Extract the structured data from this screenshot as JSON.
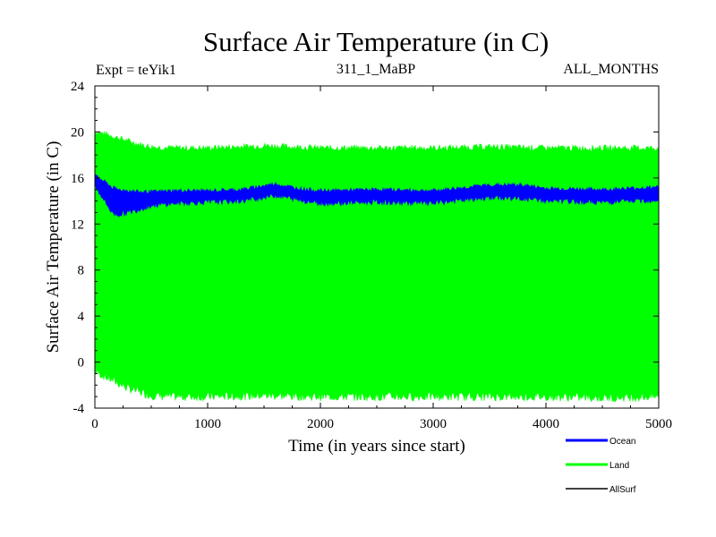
{
  "chart_data": {
    "type": "area",
    "title": "Surface Air Temperature (in C)",
    "subtitle_left": "Expt = teYik1",
    "subtitle_center": "311_1_MaBP",
    "subtitle_right": "ALL_MONTHS",
    "xlabel": "Time (in years since start)",
    "ylabel": "Surface Air Temperature (in C)",
    "xlim": [
      0,
      5000
    ],
    "ylim": [
      -4,
      24
    ],
    "x_ticks": [
      0,
      1000,
      2000,
      3000,
      4000,
      5000
    ],
    "x_tick_labels": [
      "0",
      "1000",
      "2000",
      "3000",
      "4000",
      "5000"
    ],
    "y_ticks": [
      -4,
      0,
      4,
      8,
      12,
      16,
      20,
      24
    ],
    "y_tick_labels": [
      "-4",
      "0",
      "4",
      "8",
      "12",
      "16",
      "20",
      "24"
    ],
    "grid": false,
    "legend_position": "bottom-right",
    "series": [
      {
        "name": "Land",
        "color": "#00ff00",
        "kind": "band",
        "x": [
          0,
          100,
          200,
          300,
          400,
          500,
          700,
          1000,
          1500,
          2000,
          2500,
          3000,
          3500,
          4000,
          4500,
          5000
        ],
        "upper": [
          20.0,
          19.8,
          19.5,
          19.2,
          18.9,
          18.7,
          18.6,
          18.6,
          18.8,
          18.6,
          18.6,
          18.6,
          18.7,
          18.6,
          18.6,
          18.6
        ],
        "lower": [
          -0.8,
          -1.3,
          -1.8,
          -2.3,
          -2.6,
          -2.9,
          -3.0,
          -3.0,
          -2.9,
          -3.0,
          -3.0,
          -3.0,
          -3.0,
          -3.0,
          -3.1,
          -3.0
        ]
      },
      {
        "name": "Ocean",
        "color": "#0000ff",
        "kind": "band",
        "x": [
          0,
          50,
          100,
          150,
          200,
          300,
          400,
          500,
          700,
          1000,
          1300,
          1600,
          1800,
          2000,
          2500,
          3000,
          3500,
          3800,
          4000,
          4500,
          5000
        ],
        "upper": [
          16.2,
          15.9,
          15.6,
          15.2,
          15.0,
          14.9,
          14.8,
          14.8,
          14.9,
          14.9,
          15.0,
          15.5,
          15.1,
          14.9,
          15.0,
          14.9,
          15.4,
          15.4,
          15.1,
          15.0,
          15.2
        ],
        "lower": [
          15.3,
          14.6,
          13.8,
          13.0,
          12.8,
          13.0,
          13.3,
          13.6,
          13.8,
          13.9,
          14.0,
          14.5,
          14.1,
          13.8,
          13.9,
          13.8,
          14.3,
          14.2,
          14.0,
          13.9,
          14.1
        ]
      },
      {
        "name": "AllSurf",
        "color": "#000000",
        "kind": "line",
        "x": [],
        "values": []
      }
    ]
  }
}
